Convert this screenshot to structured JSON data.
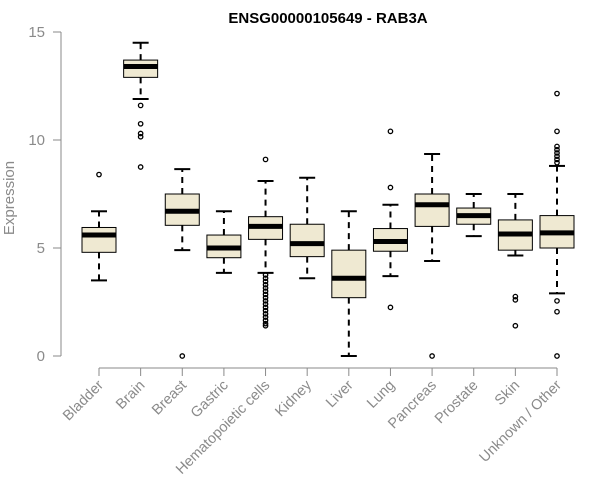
{
  "chart_data": {
    "type": "boxplot",
    "title": "ENSG00000105649 - RAB3A",
    "xlabel": "",
    "ylabel": "Expression",
    "ylim": [
      0,
      15
    ],
    "yticks": [
      0,
      5,
      10,
      15
    ],
    "grid": false,
    "box_color": "#efe9d2",
    "categories": [
      "Bladder",
      "Brain",
      "Breast",
      "Gastric",
      "Hematopoietic cells",
      "Kidney",
      "Liver",
      "Lung",
      "Pancreas",
      "Prostate",
      "Skin",
      "Unknown / Other"
    ],
    "boxes": [
      {
        "name": "Bladder",
        "whislo": 3.5,
        "q1": 4.8,
        "med": 5.6,
        "q3": 5.95,
        "whishi": 6.7,
        "fliers": [
          8.4
        ]
      },
      {
        "name": "Brain",
        "whislo": 11.9,
        "q1": 12.9,
        "med": 13.4,
        "q3": 13.7,
        "whishi": 14.5,
        "fliers": [
          11.6,
          10.75,
          10.3,
          10.15,
          8.75
        ]
      },
      {
        "name": "Breast",
        "whislo": 4.9,
        "q1": 6.05,
        "med": 6.7,
        "q3": 7.5,
        "whishi": 8.65,
        "fliers": [
          0.0
        ]
      },
      {
        "name": "Gastric",
        "whislo": 3.85,
        "q1": 4.55,
        "med": 5.0,
        "q3": 5.6,
        "whishi": 6.7,
        "fliers": []
      },
      {
        "name": "Hematopoietic cells",
        "whislo": 3.85,
        "q1": 5.4,
        "med": 6.0,
        "q3": 6.45,
        "whishi": 8.1,
        "fliers": [
          9.1,
          3.75,
          3.6,
          3.45,
          3.3,
          3.15,
          3.0,
          2.85,
          2.7,
          2.55,
          2.4,
          2.25,
          2.1,
          1.95,
          1.8,
          1.65,
          1.5,
          1.4
        ]
      },
      {
        "name": "Kidney",
        "whislo": 3.6,
        "q1": 4.6,
        "med": 5.2,
        "q3": 6.1,
        "whishi": 8.25,
        "fliers": []
      },
      {
        "name": "Liver",
        "whislo": 0.0,
        "q1": 2.7,
        "med": 3.6,
        "q3": 4.9,
        "whishi": 6.7,
        "fliers": []
      },
      {
        "name": "Lung",
        "whislo": 3.7,
        "q1": 4.85,
        "med": 5.3,
        "q3": 5.9,
        "whishi": 7.0,
        "fliers": [
          10.4,
          7.8,
          2.25
        ]
      },
      {
        "name": "Pancreas",
        "whislo": 4.4,
        "q1": 6.0,
        "med": 7.0,
        "q3": 7.5,
        "whishi": 9.35,
        "fliers": [
          0.0
        ]
      },
      {
        "name": "Prostate",
        "whislo": 5.55,
        "q1": 6.1,
        "med": 6.5,
        "q3": 6.85,
        "whishi": 7.5,
        "fliers": []
      },
      {
        "name": "Skin",
        "whislo": 4.65,
        "q1": 4.9,
        "med": 5.65,
        "q3": 6.3,
        "whishi": 7.5,
        "fliers": [
          2.75,
          2.6,
          1.4
        ]
      },
      {
        "name": "Unknown / Other",
        "whislo": 2.9,
        "q1": 5.0,
        "med": 5.7,
        "q3": 6.5,
        "whishi": 8.8,
        "fliers": [
          12.15,
          10.4,
          9.7,
          9.55,
          9.4,
          9.25,
          9.1,
          8.95,
          2.55,
          2.05,
          0.0
        ]
      }
    ]
  }
}
